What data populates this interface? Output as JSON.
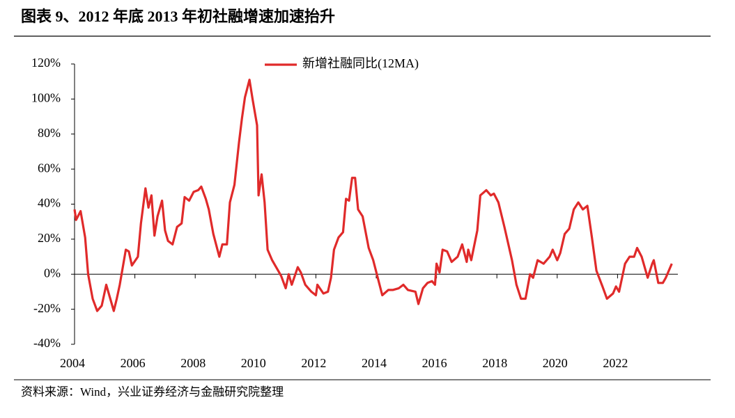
{
  "chart_data": {
    "type": "line",
    "title": "图表 9、2012 年底 2013 年初社融增速加速抬升",
    "source": "资料来源：Wind，兴业证券经济与金融研究院整理",
    "xlim": [
      2004,
      2024
    ],
    "xticks": [
      2004,
      2006,
      2008,
      2010,
      2012,
      2014,
      2016,
      2018,
      2020,
      2022
    ],
    "ylim": [
      -40,
      120
    ],
    "yticks": [
      {
        "value": -40,
        "label": "-40%"
      },
      {
        "value": -20,
        "label": "-20%"
      },
      {
        "value": 0,
        "label": "0%"
      },
      {
        "value": 20,
        "label": "20%"
      },
      {
        "value": 40,
        "label": "40%"
      },
      {
        "value": 60,
        "label": "60%"
      },
      {
        "value": 80,
        "label": "80%"
      },
      {
        "value": 100,
        "label": "100%"
      },
      {
        "value": 120,
        "label": "120%"
      }
    ],
    "legend": "top",
    "x": [
      2004.0,
      2004.05,
      2004.2,
      2004.35,
      2004.45,
      2004.6,
      2004.75,
      2004.9,
      2005.05,
      2005.2,
      2005.3,
      2005.4,
      2005.5,
      2005.7,
      2005.8,
      2005.9,
      2006.1,
      2006.2,
      2006.35,
      2006.45,
      2006.55,
      2006.65,
      2006.75,
      2006.9,
      2007.0,
      2007.1,
      2007.25,
      2007.4,
      2007.55,
      2007.65,
      2007.8,
      2007.95,
      2008.1,
      2008.2,
      2008.35,
      2008.45,
      2008.6,
      2008.8,
      2008.9,
      2009.05,
      2009.15,
      2009.3,
      2009.45,
      2009.55,
      2009.65,
      2009.8,
      2009.9,
      2010.05,
      2010.1,
      2010.2,
      2010.3,
      2010.4,
      2010.55,
      2010.75,
      2010.85,
      2011.0,
      2011.1,
      2011.2,
      2011.4,
      2011.5,
      2011.65,
      2011.85,
      2012.0,
      2012.05,
      2012.25,
      2012.4,
      2012.5,
      2012.6,
      2012.75,
      2012.9,
      2013.0,
      2013.1,
      2013.2,
      2013.3,
      2013.4,
      2013.55,
      2013.75,
      2013.9,
      2014.05,
      2014.2,
      2014.4,
      2014.55,
      2014.75,
      2014.9,
      2015.05,
      2015.3,
      2015.4,
      2015.55,
      2015.7,
      2015.85,
      2015.95,
      2016.0,
      2016.1,
      2016.2,
      2016.35,
      2016.5,
      2016.7,
      2016.85,
      2017.0,
      2017.05,
      2017.15,
      2017.35,
      2017.45,
      2017.65,
      2017.8,
      2017.9,
      2018.05,
      2018.25,
      2018.5,
      2018.65,
      2018.8,
      2018.95,
      2019.1,
      2019.2,
      2019.35,
      2019.55,
      2019.75,
      2019.85,
      2020.0,
      2020.1,
      2020.25,
      2020.4,
      2020.55,
      2020.7,
      2020.85,
      2021.0,
      2021.15,
      2021.3,
      2021.5,
      2021.65,
      2021.85,
      2021.95,
      2022.05,
      2022.15,
      2022.25,
      2022.4,
      2022.55,
      2022.65,
      2022.8,
      2023.0,
      2023.15,
      2023.2,
      2023.35,
      2023.5,
      2023.6,
      2023.8
    ],
    "series": [
      {
        "name": "新增社融同比(12MA)",
        "color": "#e02a2a",
        "values": [
          37,
          31,
          36,
          21,
          0,
          -14,
          -21,
          -18,
          -6,
          -15,
          -21,
          -14,
          -6,
          14,
          13,
          5,
          10,
          29,
          49,
          38,
          45,
          22,
          33,
          42,
          25,
          19,
          17,
          27,
          29,
          44,
          42,
          47,
          48,
          50,
          43,
          37,
          23,
          10,
          17,
          17,
          41,
          51,
          75,
          89,
          101,
          111,
          100,
          85,
          45,
          57,
          41,
          14,
          8,
          2,
          -1,
          -8,
          0,
          -6,
          4,
          1,
          -6,
          -10,
          -12,
          -6,
          -11,
          -10,
          -2,
          14,
          21,
          24,
          43,
          42,
          55,
          55,
          37,
          33,
          15,
          8,
          -2,
          -12,
          -9,
          -9,
          -8,
          -6,
          -9,
          -10,
          -17,
          -8,
          -5,
          -4,
          -6,
          6,
          1,
          14,
          13,
          7,
          10,
          17,
          7,
          14,
          8,
          25,
          45,
          48,
          45,
          46,
          41,
          27,
          8,
          -6,
          -14,
          -14,
          0,
          -2,
          8,
          6,
          10,
          14,
          8,
          12,
          23,
          26,
          37,
          41,
          37,
          39,
          21,
          2,
          -7,
          -14,
          -11,
          -7,
          -10,
          -2,
          6,
          10,
          10,
          15,
          10,
          -2,
          6,
          8,
          -5,
          -5,
          -2,
          6
        ]
      }
    ]
  }
}
